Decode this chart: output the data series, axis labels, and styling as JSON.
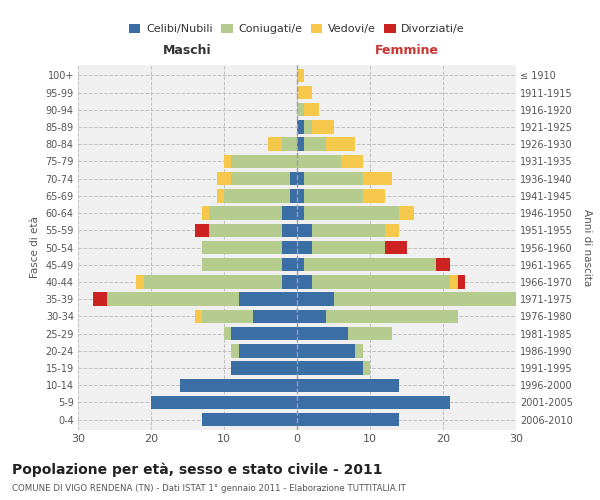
{
  "age_groups": [
    "0-4",
    "5-9",
    "10-14",
    "15-19",
    "20-24",
    "25-29",
    "30-34",
    "35-39",
    "40-44",
    "45-49",
    "50-54",
    "55-59",
    "60-64",
    "65-69",
    "70-74",
    "75-79",
    "80-84",
    "85-89",
    "90-94",
    "95-99",
    "100+"
  ],
  "birth_years": [
    "2006-2010",
    "2001-2005",
    "1996-2000",
    "1991-1995",
    "1986-1990",
    "1981-1985",
    "1976-1980",
    "1971-1975",
    "1966-1970",
    "1961-1965",
    "1956-1960",
    "1951-1955",
    "1946-1950",
    "1941-1945",
    "1936-1940",
    "1931-1935",
    "1926-1930",
    "1921-1925",
    "1916-1920",
    "1911-1915",
    "≤ 1910"
  ],
  "colors": {
    "celibi": "#3b6ea5",
    "coniugati": "#b5cc8e",
    "vedovi": "#f5c84c",
    "divorziati": "#cc2222"
  },
  "maschi": {
    "celibi": [
      13,
      20,
      16,
      9,
      8,
      9,
      6,
      8,
      2,
      2,
      2,
      2,
      2,
      1,
      1,
      0,
      0,
      0,
      0,
      0,
      0
    ],
    "coniugati": [
      0,
      0,
      0,
      0,
      1,
      1,
      7,
      18,
      19,
      11,
      11,
      10,
      10,
      9,
      8,
      9,
      2,
      0,
      0,
      0,
      0
    ],
    "vedovi": [
      0,
      0,
      0,
      0,
      0,
      0,
      1,
      0,
      1,
      0,
      0,
      0,
      1,
      1,
      2,
      1,
      2,
      0,
      0,
      0,
      0
    ],
    "divorziati": [
      0,
      0,
      0,
      0,
      0,
      0,
      0,
      2,
      0,
      0,
      0,
      2,
      0,
      0,
      0,
      0,
      0,
      0,
      0,
      0,
      0
    ]
  },
  "femmine": {
    "celibi": [
      14,
      21,
      14,
      9,
      8,
      7,
      4,
      5,
      2,
      1,
      2,
      2,
      1,
      1,
      1,
      0,
      1,
      1,
      0,
      0,
      0
    ],
    "coniugati": [
      0,
      0,
      0,
      1,
      1,
      6,
      18,
      25,
      19,
      18,
      10,
      10,
      13,
      8,
      8,
      6,
      3,
      1,
      1,
      0,
      0
    ],
    "vedovi": [
      0,
      0,
      0,
      0,
      0,
      0,
      0,
      1,
      1,
      0,
      0,
      2,
      2,
      3,
      4,
      3,
      4,
      3,
      2,
      2,
      1
    ],
    "divorziati": [
      0,
      0,
      0,
      0,
      0,
      0,
      0,
      0,
      1,
      2,
      3,
      0,
      0,
      0,
      0,
      0,
      0,
      0,
      0,
      0,
      0
    ]
  },
  "xlim": 30,
  "title": "Popolazione per età, sesso e stato civile - 2011",
  "subtitle": "COMUNE DI VIGO RENDENA (TN) - Dati ISTAT 1° gennaio 2011 - Elaborazione TUTTITALIA.IT",
  "xlabel_left": "Maschi",
  "xlabel_right": "Femmine",
  "ylabel_left": "Fasce di età",
  "ylabel_right": "Anni di nascita",
  "legend_labels": [
    "Celibi/Nubili",
    "Coniugati/e",
    "Vedovi/e",
    "Divorziati/e"
  ],
  "bg_color": "#ffffff",
  "grid_color": "#cccccc"
}
